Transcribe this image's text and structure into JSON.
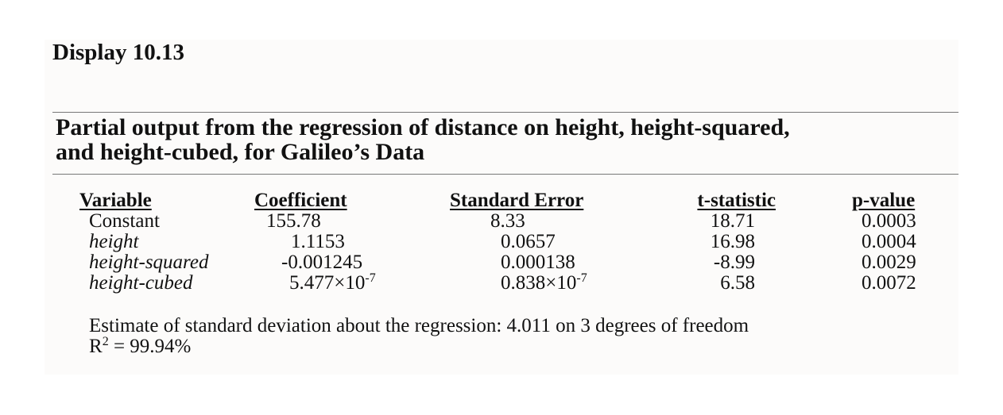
{
  "display_title": "Display 10.13",
  "caption_line1": "Partial output from the regression of distance on height, height-squared,",
  "caption_line2": "and height-cubed, for Galileo’s Data",
  "headers": {
    "variable": "Variable",
    "coefficient": "Coefficient",
    "std_error": "Standard Error",
    "t_statistic": "t-statistic",
    "p_value": "p-value"
  },
  "rows": [
    {
      "variable": "Constant",
      "coefficient": "155.78",
      "std_error": "8.33",
      "t": "18.71",
      "p": "0.0003"
    },
    {
      "variable": "height",
      "coefficient": "1.1153",
      "std_error": "0.0657",
      "t": "16.98",
      "p": "0.0004"
    },
    {
      "variable": "height-squared",
      "coefficient": "-0.001245",
      "std_error": "0.000138",
      "t": "-8.99",
      "p": "0.0029"
    },
    {
      "variable": "height-cubed",
      "coefficient_base": "5.477×10",
      "coefficient_exp": "-7",
      "std_error_base": "0.838×10",
      "std_error_exp": "-7",
      "t": "6.58",
      "p": "0.0072"
    }
  ],
  "footer_line1": "Estimate of standard deviation about the regression: 4.011 on 3 degrees of freedom",
  "footer_r_label": "R",
  "footer_r_exp": "2",
  "footer_r_value": " = 99.94%"
}
